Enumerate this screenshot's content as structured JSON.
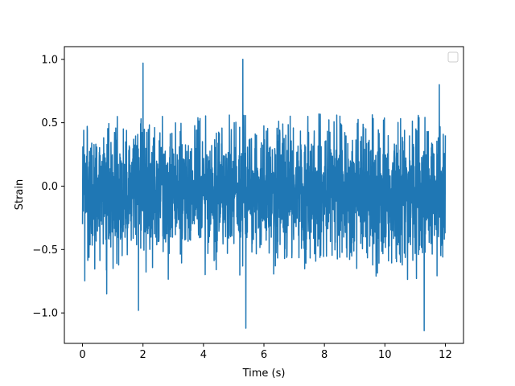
{
  "chart_data": {
    "type": "line",
    "title": "",
    "xlabel": "Time (s)",
    "ylabel": "Strain",
    "xlim": [
      -0.6,
      12.6
    ],
    "ylim": [
      -1.24,
      1.1
    ],
    "x_ticks": [
      0,
      2,
      4,
      6,
      8,
      10,
      12
    ],
    "x_tick_labels": [
      "0",
      "2",
      "4",
      "6",
      "8",
      "10",
      "12"
    ],
    "y_ticks": [
      -1.0,
      -0.5,
      0.0,
      0.5,
      1.0
    ],
    "y_tick_labels": [
      "−1.0",
      "−0.5",
      "0.0",
      "0.5",
      "1.0"
    ],
    "grid": false,
    "legend": {
      "placement": "upper right",
      "entries": []
    },
    "series": [
      {
        "color": "#1f77b4",
        "x_range": [
          0,
          12
        ],
        "y_envelope": [
          -0.75,
          0.57
        ],
        "peaks": [
          {
            "x": 2.0,
            "y": 0.97
          },
          {
            "x": 5.3,
            "y": 1.0
          },
          {
            "x": 11.8,
            "y": 0.8
          },
          {
            "x": 5.4,
            "y": -1.12
          },
          {
            "x": 11.3,
            "y": -1.14
          },
          {
            "x": 1.85,
            "y": -0.98
          },
          {
            "x": 0.8,
            "y": -0.85
          }
        ],
        "description": "dense noise signal"
      }
    ]
  }
}
